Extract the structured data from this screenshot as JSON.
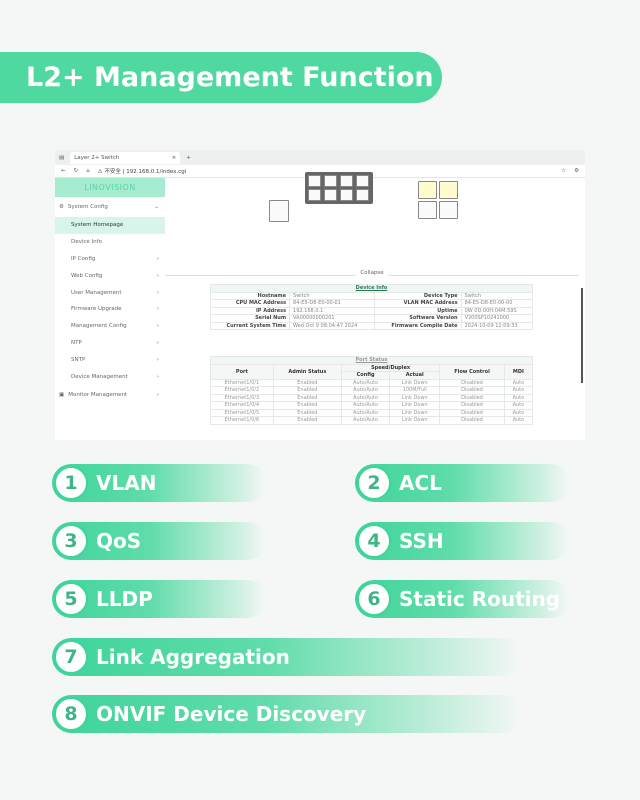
{
  "title": "L2+ Management Function",
  "browser": {
    "tab_title": "Layer 2+ Switch",
    "new_tab": "+",
    "url_warning": "不安全",
    "url": "192.168.0.1/index.cgi"
  },
  "sidebar": {
    "logo": "LINOVISION",
    "items": [
      {
        "label": "System Config",
        "chev": "⌄",
        "top": true
      },
      {
        "label": "System Homepage",
        "chev": "",
        "active": true
      },
      {
        "label": "Device Info",
        "chev": ""
      },
      {
        "label": "IP Config",
        "chev": "›"
      },
      {
        "label": "Web Config",
        "chev": "›"
      },
      {
        "label": "User Management",
        "chev": "›"
      },
      {
        "label": "Firmware Upgrade",
        "chev": "›"
      },
      {
        "label": "Management Config",
        "chev": "›"
      },
      {
        "label": "NTP",
        "chev": "›"
      },
      {
        "label": "SNTP",
        "chev": "›"
      },
      {
        "label": "Device Management",
        "chev": "›"
      },
      {
        "label": "Monitor Management",
        "chev": "›",
        "top": true
      }
    ]
  },
  "collapse": "Collapse",
  "device_info": {
    "caption": "Device Info",
    "rows": [
      [
        "Hostname",
        "Switch",
        "Device Type",
        "Switch"
      ],
      [
        "CPU MAC Address",
        "84-E5-D8-E0-00-01",
        "VLAN MAC Address",
        "84-E5-D8-E0-00-00"
      ],
      [
        "IP Address",
        "192.168.0.1",
        "Uptime",
        "0W 0D 00H:04M:59S"
      ],
      [
        "Serial Num",
        "VA00000000201",
        "Software Version",
        "V200SP10241000"
      ],
      [
        "Current System Time",
        "Wed Oct 9 08:04:47 2024",
        "Firmware Compile Date",
        "2024-10-09 11:09:33"
      ]
    ]
  },
  "port_status": {
    "caption": "Port Status",
    "headers": {
      "port": "Port",
      "admin": "Admin Status",
      "speed": "Speed/Duplex",
      "config": "Config",
      "actual": "Actual",
      "flow": "Flow Control",
      "mdi": "MDI"
    },
    "rows": [
      [
        "Ethernet1/0/1",
        "Enabled",
        "Auto/Auto",
        "Link Down",
        "Disabled",
        "Auto"
      ],
      [
        "Ethernet1/0/2",
        "Enabled",
        "Auto/Auto",
        "100M/Full",
        "Disabled",
        "Auto"
      ],
      [
        "Ethernet1/0/3",
        "Enabled",
        "Auto/Auto",
        "Link Down",
        "Disabled",
        "Auto"
      ],
      [
        "Ethernet1/0/4",
        "Enabled",
        "Auto/Auto",
        "Link Down",
        "Disabled",
        "Auto"
      ],
      [
        "Ethernet1/0/5",
        "Enabled",
        "Auto/Auto",
        "Link Down",
        "Disabled",
        "Auto"
      ],
      [
        "Ethernet1/0/6",
        "Enabled",
        "Auto/Auto",
        "Link Down",
        "Disabled",
        "Auto"
      ]
    ]
  },
  "features": [
    {
      "n": "1",
      "label": "VLAN"
    },
    {
      "n": "2",
      "label": "ACL"
    },
    {
      "n": "3",
      "label": "QoS"
    },
    {
      "n": "4",
      "label": "SSH"
    },
    {
      "n": "5",
      "label": "LLDP"
    },
    {
      "n": "6",
      "label": "Static Routing"
    },
    {
      "n": "7",
      "label": "Link Aggregation"
    },
    {
      "n": "8",
      "label": "ONVIF Device Discovery"
    }
  ],
  "colors": {
    "accent": "#4fd8a0",
    "logo_band": "#a6ecd0"
  }
}
